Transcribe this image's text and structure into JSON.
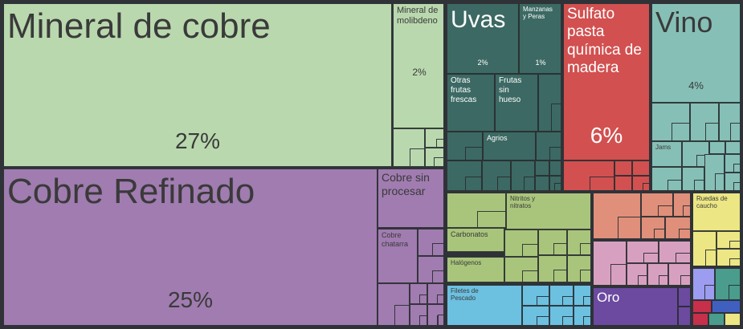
{
  "chart_data": {
    "type": "treemap",
    "items": [
      {
        "name": "Mineral de cobre",
        "share": 27,
        "pct_label": "27%"
      },
      {
        "name": "Cobre Refinado",
        "share": 25,
        "pct_label": "25%"
      },
      {
        "name": "Mineral de\nmolibdeno",
        "share": 2,
        "pct_label": "2%"
      },
      {
        "name": "Cobre sin\nprocesar",
        "share": null,
        "pct_label": ""
      },
      {
        "name": "Cobre\nchatarra",
        "share": null,
        "pct_label": ""
      },
      {
        "name": "Uvas",
        "share": 2,
        "pct_label": "2%"
      },
      {
        "name": "Manzanas\ny Peras",
        "share": 1,
        "pct_label": "1%"
      },
      {
        "name": "Otras\nfrutas\nfrescas",
        "share": null,
        "pct_label": ""
      },
      {
        "name": "Frutas\nsin\nhueso",
        "share": null,
        "pct_label": ""
      },
      {
        "name": "Agrios",
        "share": null,
        "pct_label": ""
      },
      {
        "name": "Sulfato\npasta\nquímica de\nmadera",
        "share": 6,
        "pct_label": "6%"
      },
      {
        "name": "Vino",
        "share": 4,
        "pct_label": "4%"
      },
      {
        "name": "Jams",
        "share": null,
        "pct_label": ""
      },
      {
        "name": "Nitritos y\nnitratos",
        "share": null,
        "pct_label": ""
      },
      {
        "name": "Carbonatos",
        "share": null,
        "pct_label": ""
      },
      {
        "name": "Halógenos",
        "share": null,
        "pct_label": ""
      },
      {
        "name": "Filetes de\nPescado",
        "share": null,
        "pct_label": ""
      },
      {
        "name": "Ruedas de\ncaucho",
        "share": null,
        "pct_label": ""
      },
      {
        "name": "Oro",
        "share": null,
        "pct_label": ""
      }
    ],
    "colors": {
      "minerals": "#b9d8ae",
      "metals": "#a07cb0",
      "fruits": "#3c6963",
      "paper": "#d25050",
      "beverages": "#86bfb6",
      "chemicals": "#a9c57c",
      "fish": "#6cc0e0",
      "food": "#e08f7a",
      "textiles": "#d8a0c0",
      "rubber": "#ece684",
      "precious": "#6b4aa0",
      "machinery": "#9c9cf0",
      "misc_red": "#c6304a",
      "misc_teal": "#4a9c8c",
      "misc_blue": "#4060c0"
    }
  }
}
